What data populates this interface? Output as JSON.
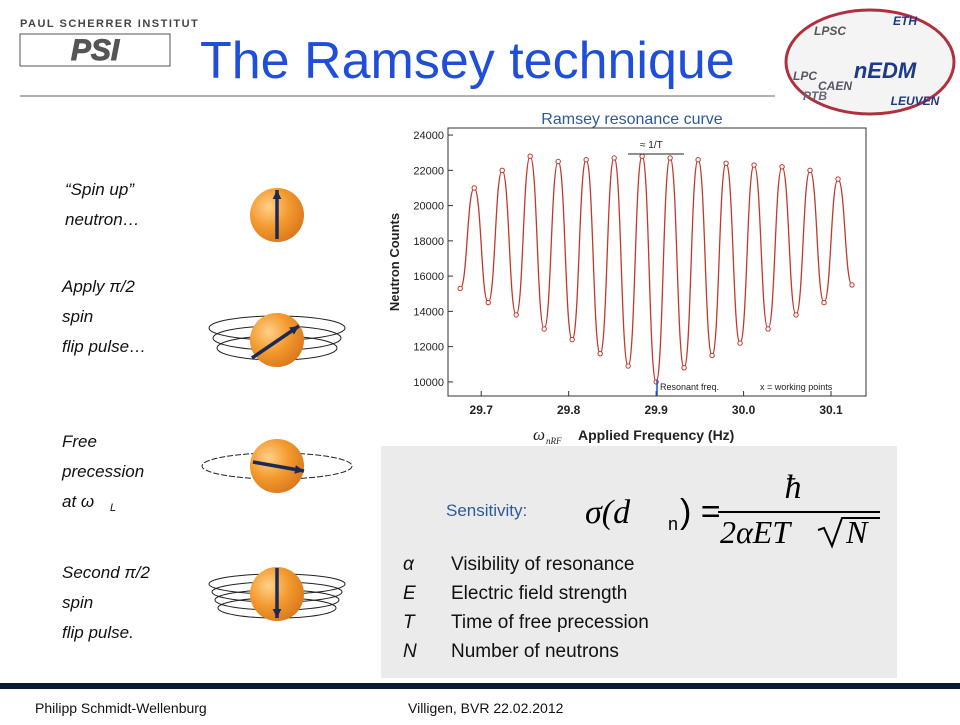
{
  "header": {
    "institute": "PAUL SCHERRER INSTITUT",
    "logo": "PSI",
    "title": "The Ramsey technique"
  },
  "partners": [
    "LPSC",
    "ETH",
    "PTB",
    "nEDM",
    "LPC",
    "CAEN",
    "LEUVEN"
  ],
  "steps": [
    {
      "lines": [
        "“Spin up”",
        "neutron…"
      ]
    },
    {
      "lines": [
        "Apply π/2",
        "spin",
        "flip pulse…"
      ]
    },
    {
      "lines": [
        "Free",
        "precession",
        "at ω"
      ],
      "sub": "L"
    },
    {
      "lines": [
        "Second π/2",
        "spin",
        "flip pulse."
      ]
    }
  ],
  "chart_data": {
    "type": "line",
    "title": "Ramsey resonance curve",
    "x_label": "Applied Frequency (Hz)",
    "y_label": "Neutron Counts",
    "x_symbol": "ω",
    "x_symbol_sub": "nRF",
    "annotations": [
      "≈ 1/T",
      "Resonant freq.",
      "x = working points"
    ],
    "color": "#c0392b",
    "x": [
      29.676,
      29.692,
      29.708,
      29.724,
      29.74,
      29.756,
      29.772,
      29.788,
      29.804,
      29.82,
      29.836,
      29.852,
      29.868,
      29.884,
      29.9,
      29.916,
      29.932,
      29.948,
      29.964,
      29.98,
      29.996,
      30.012,
      30.028,
      30.044,
      30.06,
      30.076,
      30.092,
      30.108,
      30.124
    ],
    "values": [
      15300,
      21000,
      14500,
      22000,
      13800,
      22800,
      13000,
      22500,
      12400,
      22600,
      11600,
      22700,
      10900,
      22800,
      10000,
      22700,
      10800,
      22600,
      11500,
      22400,
      12200,
      22300,
      13000,
      22200,
      13800,
      22000,
      14500,
      21500,
      15500
    ],
    "xlim": [
      29.662,
      30.14
    ],
    "ylim": [
      9200,
      24400
    ],
    "xticks": [
      29.7,
      29.8,
      29.9,
      {
        "value": 30,
        "label": "30.0"
      },
      30.1
    ],
    "yticks": [
      10000,
      12000,
      14000,
      16000,
      18000,
      20000,
      22000,
      24000
    ]
  },
  "sensitivity": {
    "label": "Sensitivity:",
    "lhs": "σ(d",
    "lhs_sub": "n",
    "lhs_close": ") =",
    "numerator": "ħ",
    "denominator": "2αET",
    "root": "N",
    "legend": [
      {
        "symbol": "α",
        "text": "Visibility of resonance"
      },
      {
        "symbol": "E",
        "text": "Electric field strength"
      },
      {
        "symbol": "T",
        "text": "Time of free precession"
      },
      {
        "symbol": "N",
        "text": "Number of neutrons"
      }
    ]
  },
  "footer": {
    "author": "Philipp Schmidt-Wellenburg",
    "event": "Villigen, BVR 22.02.2012"
  }
}
